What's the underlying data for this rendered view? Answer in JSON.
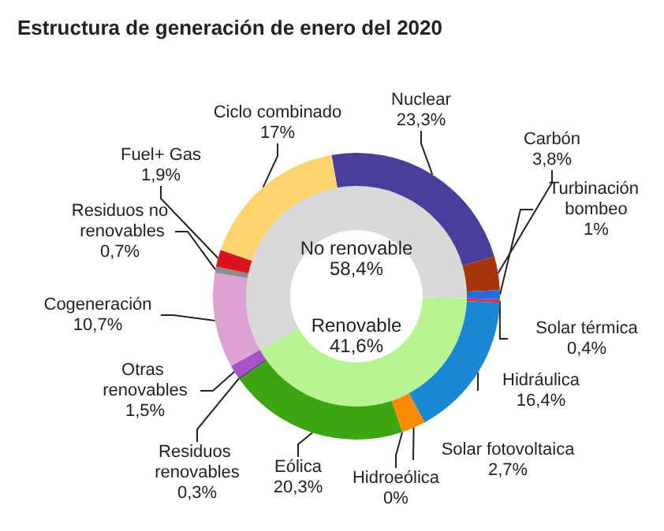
{
  "chart_data": [
    {
      "type": "donut",
      "title": "Estructura de generación de enero del 2020",
      "categories": [
        "Renovable",
        "No renovable"
      ],
      "values": [
        41.6,
        58.4
      ],
      "colors": [
        "#b6f58f",
        "#d9d9d9"
      ],
      "value_labels": [
        "41,6%",
        "58,4%"
      ],
      "legend": false
    },
    {
      "type": "donut",
      "categories": [
        "Nuclear",
        "Carbón",
        "Turbinación bombeo",
        "Solar térmica",
        "Hidráulica",
        "Solar fotovoltaica",
        "Hidroeólica",
        "Eólica",
        "Residuos renovables",
        "Otras renovables",
        "Cogeneración",
        "Residuos no renovables",
        "Fuel+ Gas",
        "Ciclo combinado"
      ],
      "values": [
        23.3,
        3.8,
        1,
        0.4,
        16.4,
        2.7,
        0,
        20.3,
        0.3,
        1.5,
        10.7,
        0.7,
        1.9,
        17
      ],
      "colors": [
        "#483f9b",
        "#a8340a",
        "#1f6fe0",
        "#d8344e",
        "#1a88d4",
        "#ff8a00",
        "#39a2c8",
        "#3ea512",
        "#6c4a8a",
        "#a553c6",
        "#dea2d2",
        "#8c8c8c",
        "#d9141e",
        "#ffd46e"
      ],
      "value_labels": [
        "23,3%",
        "3,8%",
        "1%",
        "0,4%",
        "16,4%",
        "2,7%",
        "0%",
        "20,3%",
        "0,3%",
        "1,5%",
        "10,7%",
        "0,7%",
        "1,9%",
        "17%"
      ],
      "legend": false
    }
  ]
}
